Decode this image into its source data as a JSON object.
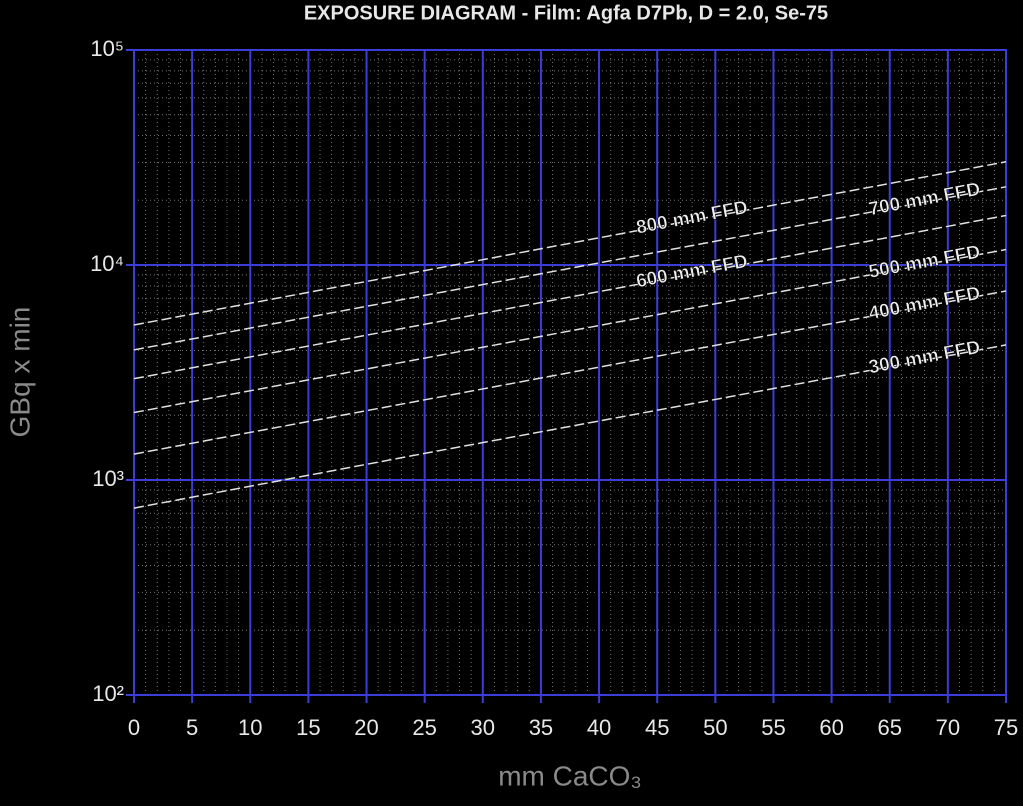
{
  "chart_data": {
    "type": "line",
    "title": "EXPOSURE DIAGRAM - Film: Agfa D7Pb, D = 2.0, Se-75",
    "x_label": "mm CaCO₃",
    "y_label": "GBq x min",
    "x": [
      0,
      25,
      50,
      75
    ],
    "series": [
      {
        "name": "300 mm FFD",
        "color": "#e0e0e0",
        "values": [
          740,
          1330,
          2370,
          4250
        ]
      },
      {
        "name": "400 mm FFD",
        "color": "#e0e0e0",
        "values": [
          1320,
          2360,
          4230,
          7570
        ]
      },
      {
        "name": "500 mm FFD",
        "color": "#e0e0e0",
        "values": [
          2060,
          3690,
          6600,
          11800
        ]
      },
      {
        "name": "600 mm FFD",
        "color": "#e0e0e0",
        "values": [
          2960,
          5300,
          9500,
          17000
        ]
      },
      {
        "name": "700 mm FFD",
        "color": "#e0e0e0",
        "values": [
          4030,
          7220,
          12900,
          23100
        ]
      },
      {
        "name": "800 mm FFD",
        "color": "#e0e0e0",
        "values": [
          5260,
          9420,
          16900,
          30200
        ]
      }
    ],
    "xlim": [
      0,
      75
    ],
    "xticks": [
      0,
      5,
      10,
      15,
      20,
      25,
      30,
      35,
      40,
      45,
      50,
      55,
      60,
      65,
      70,
      75
    ],
    "ylim": [
      100,
      100000
    ],
    "yticks": [
      {
        "value": 100,
        "label": "10²"
      },
      {
        "value": 1000,
        "label": "10³"
      },
      {
        "value": 10000,
        "label": "10⁴"
      },
      {
        "value": 100000,
        "label": "10⁵"
      }
    ],
    "y_log": true,
    "grid": true,
    "minor_grid": true,
    "grid_color": "#3c3cd8",
    "background": "#000000"
  }
}
